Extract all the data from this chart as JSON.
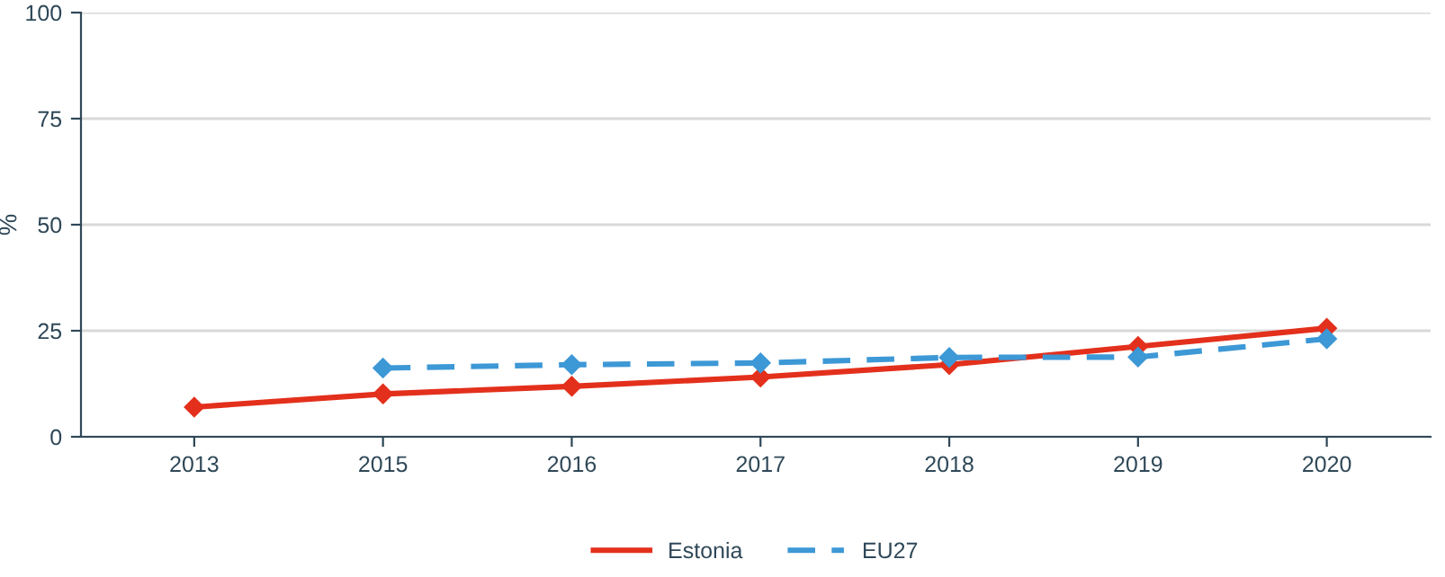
{
  "chart_data": {
    "type": "line",
    "ylabel": "%",
    "categories": [
      "2013",
      "2015",
      "2016",
      "2017",
      "2018",
      "2019",
      "2020"
    ],
    "series": [
      {
        "name": "Estonia",
        "color": "#e3301c",
        "line_style": "solid",
        "values": [
          7.0,
          10.1,
          11.9,
          14.1,
          17.0,
          21.3,
          25.6
        ]
      },
      {
        "name": "EU27",
        "color": "#3d98d6",
        "line_style": "dashed",
        "values": [
          null,
          16.2,
          17.0,
          17.4,
          18.7,
          18.8,
          23.1
        ]
      }
    ],
    "ylim": [
      0,
      100
    ],
    "yticks": [
      0,
      25,
      50,
      75,
      100
    ],
    "grid": "y",
    "legend": "bottom",
    "marker": "diamond"
  }
}
